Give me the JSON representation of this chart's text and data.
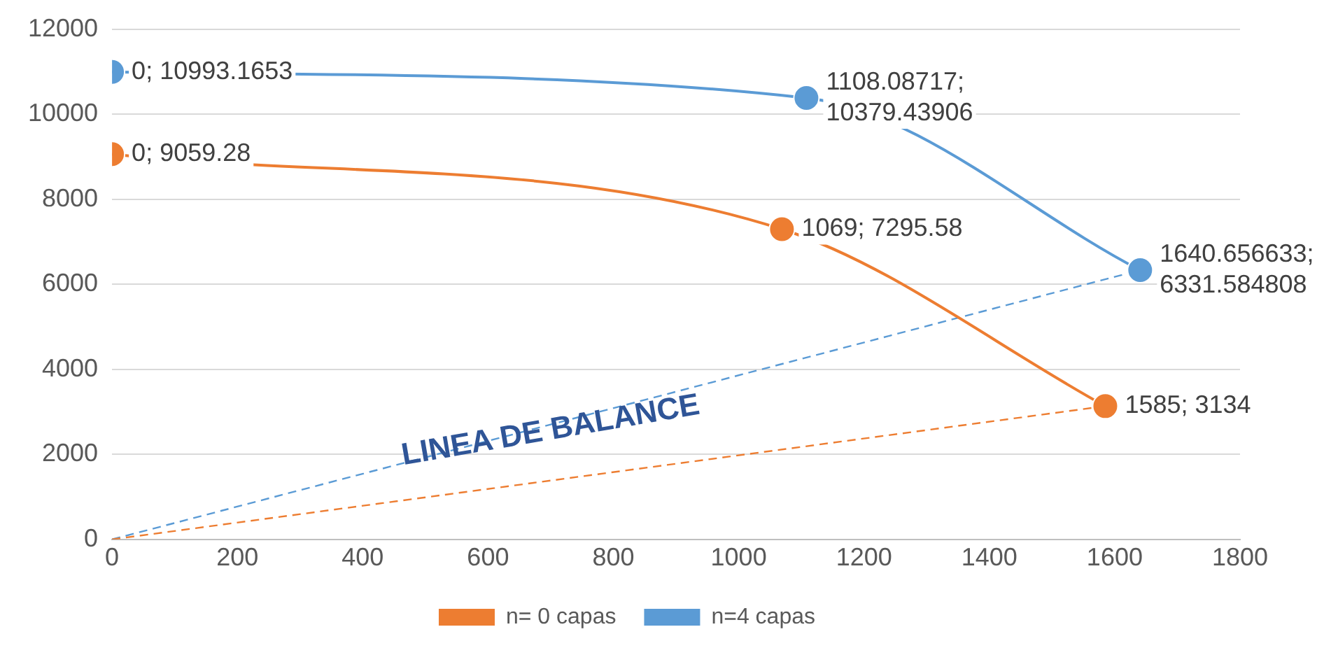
{
  "chart_data": {
    "type": "scatter",
    "xlim": [
      0,
      1800
    ],
    "xticks": [
      0,
      200,
      400,
      600,
      800,
      1000,
      1200,
      1400,
      1600,
      1800
    ],
    "ylim": [
      0,
      12000
    ],
    "yticks": [
      0,
      2000,
      4000,
      6000,
      8000,
      10000,
      12000
    ],
    "grid": "y",
    "legend": "bottom",
    "marker": "circle",
    "line_style": "solid",
    "annotations": [
      {
        "text": "LINEA DE BALANCE",
        "x": 700,
        "y": 2550
      }
    ],
    "series": [
      {
        "name": "n= 0 capas",
        "type": "line",
        "color": "#ed7d31",
        "x": [
          0,
          1069,
          1585
        ],
        "values": [
          9059.28,
          7295.58,
          3134
        ],
        "value_labels": [
          "0; 9059.28",
          "1069; 7295.58",
          "1585; 3134"
        ]
      },
      {
        "name": "n=4 capas",
        "type": "line",
        "color": "#5b9bd5",
        "x": [
          0,
          1108.08717,
          1640.656633
        ],
        "values": [
          10993.1653,
          10379.43906,
          6331.584808
        ],
        "value_labels": [
          "0; 10993.1653",
          "1108.08717; 10379.43906",
          "1640.656633; 6331.584808"
        ]
      },
      {
        "type": "line",
        "color": "#ed7d31",
        "x": [
          0,
          1585
        ],
        "values": [
          0,
          3134
        ],
        "marker": "none",
        "line_style": "dashed"
      },
      {
        "type": "line",
        "color": "#5b9bd5",
        "x": [
          0,
          1640.656633
        ],
        "values": [
          0,
          6331.584808
        ],
        "marker": "none",
        "line_style": "dashed"
      }
    ]
  }
}
